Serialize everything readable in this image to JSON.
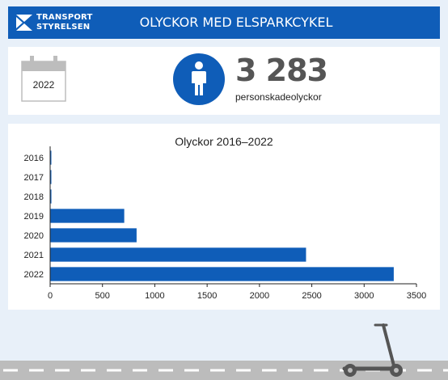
{
  "header": {
    "logo_line1": "TRANSPORT",
    "logo_line2": "STYRELSEN",
    "title": "OLYCKOR MED ELSPARKCYKEL"
  },
  "summary": {
    "year": "2022",
    "count": "3 283",
    "count_label": "personskadeolyckor",
    "icons": [
      "calendar-icon",
      "person-icon"
    ]
  },
  "decor": {
    "icons": [
      "scooter-icon"
    ]
  },
  "colors": {
    "brand": "#0f5db8",
    "background": "#e8f0f9",
    "road": "#bcbcbc"
  },
  "chart_data": {
    "type": "bar",
    "orientation": "horizontal",
    "title": "Olyckor 2016–2022",
    "categories": [
      "2016",
      "2017",
      "2018",
      "2019",
      "2020",
      "2021",
      "2022"
    ],
    "values": [
      8,
      5,
      12,
      708,
      826,
      2445,
      3283
    ],
    "xlim": [
      0,
      3500
    ],
    "xticks": [
      0,
      500,
      1000,
      1500,
      2000,
      2500,
      3000,
      3500
    ],
    "xlabel": "",
    "ylabel": "",
    "grid": false,
    "legend": "none"
  }
}
